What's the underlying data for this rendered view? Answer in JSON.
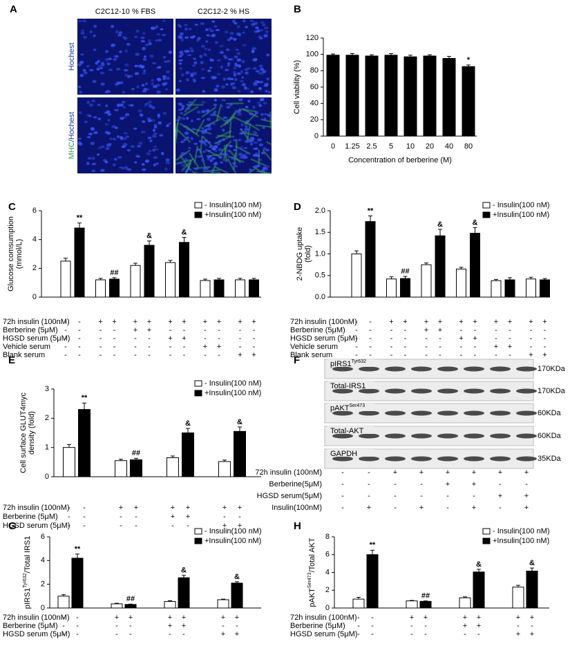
{
  "micrographs": {
    "panel": "A",
    "columns": [
      "C2C12-10 % FBS",
      "C2C12-2 % HS"
    ],
    "rows": [
      [
        {
          "text": "Hochest",
          "color": "#1f3a93"
        }
      ],
      [
        {
          "text": "MHC",
          "color": "#2ca04c"
        },
        {
          "text": "/Hochest",
          "color": "#1f3a93"
        }
      ]
    ]
  },
  "western_blot": {
    "panel": "F",
    "rows": [
      {
        "label": "pIRS1",
        "sup": "Tyr632",
        "size": "170KDa"
      },
      {
        "label": "Total-IRS1",
        "size": "170KDa"
      },
      {
        "label": "pAKT",
        "sup": "Ser473",
        "size": "60KDa"
      },
      {
        "label": "Total-AKT",
        "size": "60KDa"
      },
      {
        "label": "GAPDH",
        "size": "35KDa"
      }
    ],
    "conditions": [
      {
        "label": "72h insulin (100nM)",
        "marks": [
          "-",
          "-",
          "+",
          "+",
          "+",
          "+",
          "+",
          "+"
        ]
      },
      {
        "label": "Berberine(5μM)",
        "marks": [
          "-",
          "-",
          "-",
          "-",
          "+",
          "+",
          "-",
          "-"
        ]
      },
      {
        "label": "HGSD serum(5μM)",
        "marks": [
          "-",
          "-",
          "-",
          "-",
          "-",
          "-",
          "+",
          "+"
        ]
      },
      {
        "label": "Insulin(100nM)",
        "marks": [
          "-",
          "+",
          "-",
          "+",
          "-",
          "+",
          "-",
          "+"
        ]
      }
    ]
  },
  "chart_data": [
    {
      "type": "bar",
      "panel": "B",
      "ylabel": [
        "Cell viability (%)"
      ],
      "xlabel": "Concentration of berberine (M)",
      "categories": [
        "0",
        "1.25",
        "2.5",
        "5",
        "10",
        "20",
        "40",
        "80"
      ],
      "values": [
        99,
        99,
        98,
        99,
        97,
        98,
        95,
        85
      ],
      "errors": [
        1.5,
        2,
        1.5,
        2,
        2,
        1.5,
        2.5,
        2
      ],
      "significance": [
        null,
        null,
        null,
        null,
        null,
        null,
        null,
        "*"
      ],
      "color": "#000000",
      "ylim": [
        0,
        120
      ],
      "yticks": [
        0,
        20,
        40,
        60,
        80,
        100,
        120
      ]
    },
    {
      "type": "bar",
      "panel": "C",
      "ylabel": [
        "Glucose comsumption",
        "(mmol/L)"
      ],
      "legend": "upper right",
      "series": [
        {
          "name": "- Insulin(100 nM)",
          "color": "#ffffff",
          "values": [
            2.5,
            1.2,
            2.2,
            2.4,
            1.15,
            1.2
          ],
          "errors": [
            0.2,
            0.1,
            0.15,
            0.15,
            0.1,
            0.1
          ],
          "significance": [
            null,
            null,
            null,
            null,
            null,
            null
          ]
        },
        {
          "name": "+Insulin(100 nM)",
          "color": "#000000",
          "values": [
            4.8,
            1.25,
            3.6,
            3.8,
            1.2,
            1.2
          ],
          "errors": [
            0.35,
            0.1,
            0.3,
            0.35,
            0.1,
            0.1
          ],
          "significance": [
            "**",
            "##",
            "&",
            "&",
            null,
            null
          ]
        }
      ],
      "ylim": [
        0,
        6
      ],
      "yticks": [
        0,
        2,
        4,
        6
      ],
      "conditions": [
        {
          "label": "72h insulin (100nM)",
          "marks": [
            "-",
            "-",
            "+",
            "+",
            "+",
            "+",
            "+",
            "+",
            "+",
            "+",
            "+",
            "+"
          ]
        },
        {
          "label": "Berberine (5μM)",
          "marks": [
            "-",
            "-",
            "-",
            "-",
            "+",
            "+",
            "-",
            "-",
            "-",
            "-",
            "-",
            "-"
          ]
        },
        {
          "label": "HGSD serum (5μM)",
          "marks": [
            "-",
            "-",
            "-",
            "-",
            "-",
            "-",
            "+",
            "+",
            "-",
            "-",
            "-",
            "-"
          ]
        },
        {
          "label": "Vehicle serum",
          "marks": [
            "-",
            "-",
            "-",
            "-",
            "-",
            "-",
            "-",
            "-",
            "+",
            "+",
            "-",
            "-"
          ]
        },
        {
          "label": "Blank serum",
          "marks": [
            "-",
            "-",
            "-",
            "-",
            "-",
            "-",
            "-",
            "-",
            "-",
            "-",
            "+",
            "+"
          ]
        }
      ]
    },
    {
      "type": "bar",
      "panel": "D",
      "ylabel": [
        "2-NBDG uptake",
        "(fold)"
      ],
      "legend": "upper right",
      "series": [
        {
          "name": "- Insulin(100 nM)",
          "color": "#ffffff",
          "values": [
            1.0,
            0.42,
            0.75,
            0.65,
            0.38,
            0.42
          ],
          "errors": [
            0.07,
            0.05,
            0.04,
            0.04,
            0.03,
            0.04
          ],
          "significance": [
            null,
            null,
            null,
            null,
            null,
            null
          ]
        },
        {
          "name": "+Insulin(100 nM)",
          "color": "#000000",
          "values": [
            1.75,
            0.43,
            1.42,
            1.48,
            0.4,
            0.4
          ],
          "errors": [
            0.13,
            0.05,
            0.15,
            0.13,
            0.05,
            0.03
          ],
          "significance": [
            "**",
            "##",
            "&",
            "&",
            null,
            null
          ]
        }
      ],
      "ylim": [
        0,
        2
      ],
      "yticks": [
        {
          "value": 0,
          "label": "0.0"
        },
        0.5,
        {
          "value": 1,
          "label": "1.0"
        },
        1.5,
        {
          "value": 2,
          "label": "2.0"
        }
      ],
      "conditions": [
        {
          "label": "72h insulin (100nM)",
          "marks": [
            "-",
            "-",
            "+",
            "+",
            "+",
            "+",
            "+",
            "+",
            "+",
            "+",
            "+",
            "+"
          ]
        },
        {
          "label": "Berberine (5μM)",
          "marks": [
            "-",
            "-",
            "-",
            "-",
            "+",
            "+",
            "-",
            "-",
            "-",
            "-",
            "-",
            "-"
          ]
        },
        {
          "label": "HGSD serum (5μM)",
          "marks": [
            "-",
            "-",
            "-",
            "-",
            "-",
            "-",
            "+",
            "+",
            "-",
            "-",
            "-",
            "-"
          ]
        },
        {
          "label": "Vehicle serum",
          "marks": [
            "-",
            "-",
            "-",
            "-",
            "-",
            "-",
            "-",
            "-",
            "+",
            "+",
            "-",
            "-"
          ]
        },
        {
          "label": "Blank serum",
          "marks": [
            "-",
            "-",
            "-",
            "-",
            "-",
            "-",
            "-",
            "-",
            "-",
            "-",
            "+",
            "+"
          ]
        }
      ]
    },
    {
      "type": "bar",
      "panel": "E",
      "ylabel": [
        "Cell surface GLUT4myc",
        "density (fold)"
      ],
      "legend": "upper right",
      "series": [
        {
          "name": "- Insulin(100 nM)",
          "color": "#ffffff",
          "values": [
            1.0,
            0.55,
            0.65,
            0.52
          ],
          "errors": [
            0.1,
            0.05,
            0.06,
            0.05
          ],
          "significance": [
            null,
            null,
            null,
            null
          ]
        },
        {
          "name": "+Insulin(100 nM)",
          "color": "#000000",
          "values": [
            2.3,
            0.58,
            1.5,
            1.55
          ],
          "errors": [
            0.22,
            0.05,
            0.15,
            0.15
          ],
          "significance": [
            "**",
            "##",
            "&",
            "&"
          ]
        }
      ],
      "ylim": [
        0,
        3
      ],
      "yticks": [
        0,
        1,
        2,
        3
      ],
      "conditions": [
        {
          "label": "72h insulin (100nM)",
          "marks": [
            "-",
            "-",
            "+",
            "+",
            "+",
            "+",
            "+",
            "+"
          ]
        },
        {
          "label": "Berberine (5μM)",
          "marks": [
            "-",
            "-",
            "-",
            "-",
            "+",
            "+",
            "-",
            "-"
          ]
        },
        {
          "label": "HGSD serum (5μM)",
          "marks": [
            "-",
            "-",
            "-",
            "-",
            "-",
            "-",
            "+",
            "+"
          ]
        }
      ]
    },
    {
      "type": "bar",
      "panel": "G",
      "ylabel": [
        {
          "base": "pIRS1",
          "sup": "Tyr632",
          "after": "/Total IRS1"
        }
      ],
      "legend": "upper right",
      "series": [
        {
          "name": "- Insulin(100 nM)",
          "color": "#ffffff",
          "values": [
            1.0,
            0.35,
            0.55,
            0.7
          ],
          "errors": [
            0.12,
            0.05,
            0.07,
            0.05
          ],
          "significance": [
            null,
            null,
            null,
            null
          ]
        },
        {
          "name": "+Insulin(100 nM)",
          "color": "#000000",
          "values": [
            4.2,
            0.3,
            2.55,
            2.1
          ],
          "errors": [
            0.35,
            0.03,
            0.2,
            0.12
          ],
          "significance": [
            "**",
            "##",
            "&",
            "&"
          ]
        }
      ],
      "ylim": [
        0,
        6
      ],
      "yticks": [
        0,
        2,
        4,
        6
      ],
      "conditions": [
        {
          "label": "72h insulin (100nM)",
          "marks": [
            "-",
            "-",
            "+",
            "+",
            "+",
            "+",
            "+",
            "+"
          ]
        },
        {
          "label": "Berberine (5μM)",
          "marks": [
            "-",
            "-",
            "-",
            "-",
            "+",
            "+",
            "-",
            "-"
          ]
        },
        {
          "label": "HGSD serum (5μM)",
          "marks": [
            "-",
            "-",
            "-",
            "-",
            "-",
            "-",
            "+",
            "+"
          ]
        }
      ]
    },
    {
      "type": "bar",
      "panel": "H",
      "ylabel": [
        {
          "base": "pAKT",
          "sup": "Ser473",
          "after": "/Total AKT"
        }
      ],
      "legend": "upper right",
      "series": [
        {
          "name": "- Insulin(100 nM)",
          "color": "#ffffff",
          "values": [
            1.0,
            0.8,
            1.15,
            2.35
          ],
          "errors": [
            0.2,
            0.05,
            0.1,
            0.2
          ],
          "significance": [
            null,
            null,
            null,
            null
          ]
        },
        {
          "name": "+Insulin(100 nM)",
          "color": "#000000",
          "values": [
            6.0,
            0.75,
            4.05,
            4.15
          ],
          "errors": [
            0.5,
            0.05,
            0.3,
            0.35
          ],
          "significance": [
            "**",
            "##",
            "&",
            "&"
          ]
        }
      ],
      "ylim": [
        0,
        8
      ],
      "yticks": [
        0,
        2,
        4,
        6,
        8
      ],
      "conditions": [
        {
          "label": "72h insulin (100nM)",
          "marks": [
            "-",
            "-",
            "+",
            "+",
            "+",
            "+",
            "+",
            "+"
          ]
        },
        {
          "label": "Berberine (5μM)",
          "marks": [
            "-",
            "-",
            "-",
            "-",
            "+",
            "+",
            "-",
            "-"
          ]
        },
        {
          "label": "HGSD serum (5μM)",
          "marks": [
            "-",
            "-",
            "-",
            "-",
            "-",
            "-",
            "+",
            "+"
          ]
        }
      ]
    }
  ]
}
